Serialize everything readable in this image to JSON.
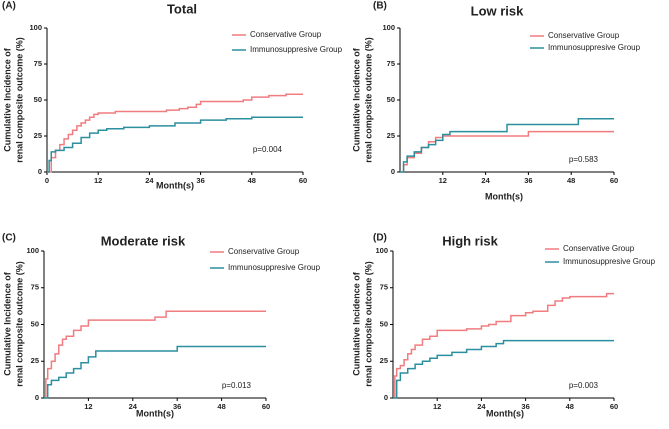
{
  "chart_data": [
    {
      "type": "line",
      "step": true,
      "panel_label": "(A)",
      "title": "Total",
      "ylabel": [
        "Cumulative Incidence of",
        "renal composite outcome (%)"
      ],
      "xlabel": "Month(s)",
      "annotation": "p=0.004",
      "xlim": [
        0,
        60
      ],
      "ylim": [
        0,
        100
      ],
      "xticks": [
        0,
        12,
        24,
        36,
        48,
        60
      ],
      "yticks": [
        0,
        25,
        50,
        75,
        100
      ],
      "series": [
        {
          "name": "Conservative Group",
          "color": "#f17c80",
          "x": [
            0,
            1,
            2,
            3,
            4,
            5,
            6,
            7,
            8,
            9,
            10,
            11,
            12,
            16,
            24,
            28,
            31,
            33,
            35,
            36,
            44,
            46,
            48,
            52,
            56,
            60
          ],
          "values": [
            0,
            10,
            15,
            19,
            23,
            26,
            29,
            32,
            34,
            36,
            38,
            40,
            41,
            42,
            42,
            43,
            44,
            45,
            47,
            49,
            49,
            50,
            52,
            53,
            54,
            54
          ]
        },
        {
          "name": "Immunosuppresive Group",
          "color": "#2b8f9f",
          "x": [
            0,
            0.5,
            1,
            2,
            4,
            6,
            8,
            10,
            12,
            14,
            18,
            24,
            30,
            36,
            42,
            48,
            60
          ],
          "values": [
            0,
            8,
            14,
            15,
            17,
            20,
            24,
            27,
            29,
            30,
            31,
            32,
            34,
            36,
            37,
            38,
            38
          ]
        }
      ]
    },
    {
      "type": "line",
      "step": true,
      "panel_label": "(B)",
      "title": "Low risk",
      "ylabel": [
        "Cumulative Incidence of",
        "renal composite outcome (%)"
      ],
      "xlabel": "Month(s)",
      "annotation": "p=0.583",
      "xlim": [
        0,
        60
      ],
      "ylim": [
        0,
        100
      ],
      "xticks": [
        12,
        24,
        36,
        48,
        60
      ],
      "yticks": [
        0,
        25,
        50,
        75,
        100
      ],
      "series": [
        {
          "name": "Conservative Group",
          "color": "#f17c80",
          "x": [
            0,
            1,
            2,
            4,
            6,
            8,
            10,
            12,
            36,
            60
          ],
          "values": [
            0,
            5,
            10,
            13,
            17,
            21,
            24,
            25,
            28,
            28
          ]
        },
        {
          "name": "Immunosuppresive Group",
          "color": "#2b8f9f",
          "x": [
            0,
            1,
            2,
            4,
            6,
            8,
            10,
            12,
            14,
            30,
            50,
            60
          ],
          "values": [
            0,
            7,
            11,
            14,
            17,
            19,
            22,
            26,
            28,
            33,
            37,
            37
          ]
        }
      ]
    },
    {
      "type": "line",
      "step": true,
      "panel_label": "(C)",
      "title": "Moderate risk",
      "ylabel": [
        "Cumulative Incidence of",
        "renal composite outcome (%)"
      ],
      "xlabel": "Month(s)",
      "annotation": "p=0.013",
      "xlim": [
        0,
        60
      ],
      "ylim": [
        0,
        100
      ],
      "xticks": [
        12,
        24,
        36,
        48,
        60
      ],
      "yticks": [
        0,
        25,
        50,
        75,
        100
      ],
      "series": [
        {
          "name": "Conservative Group",
          "color": "#f17c80",
          "x": [
            0,
            0.5,
            1,
            2,
            3,
            4,
            5,
            6,
            8,
            10,
            12,
            30,
            33,
            60
          ],
          "values": [
            0,
            13,
            20,
            25,
            30,
            36,
            40,
            42,
            46,
            49,
            53,
            55,
            59,
            59
          ]
        },
        {
          "name": "Immunosuppresive Group",
          "color": "#2b8f9f",
          "x": [
            0,
            1,
            2,
            4,
            6,
            8,
            10,
            12,
            14,
            36,
            60
          ],
          "values": [
            0,
            9,
            12,
            14,
            17,
            20,
            24,
            28,
            32,
            35,
            35
          ]
        }
      ]
    },
    {
      "type": "line",
      "step": true,
      "panel_label": "(D)",
      "title": "High risk",
      "ylabel": [
        "Cumulative Incidence of",
        "renal composite outcome (%)"
      ],
      "xlabel": "Month(s)",
      "annotation": "p=0.003",
      "xlim": [
        0,
        60
      ],
      "ylim": [
        0,
        100
      ],
      "xticks": [
        12,
        24,
        36,
        48,
        60
      ],
      "yticks": [
        0,
        25,
        50,
        75,
        100
      ],
      "series": [
        {
          "name": "Conservative Group",
          "color": "#f17c80",
          "x": [
            0,
            0.5,
            1,
            2,
            3,
            4,
            5,
            6,
            8,
            10,
            12,
            20,
            24,
            26,
            28,
            32,
            36,
            38,
            42,
            44,
            46,
            48,
            58,
            60
          ],
          "values": [
            0,
            15,
            20,
            22,
            26,
            30,
            33,
            36,
            40,
            42,
            46,
            47,
            49,
            50,
            52,
            56,
            58,
            59,
            63,
            66,
            68,
            69,
            71,
            71
          ]
        },
        {
          "name": "Immunosuppresive Group",
          "color": "#2b8f9f",
          "x": [
            0,
            1,
            2,
            4,
            6,
            8,
            10,
            12,
            16,
            20,
            24,
            28,
            30,
            60
          ],
          "values": [
            0,
            12,
            17,
            20,
            23,
            25,
            27,
            29,
            31,
            33,
            35,
            37,
            39,
            39
          ]
        }
      ]
    }
  ]
}
